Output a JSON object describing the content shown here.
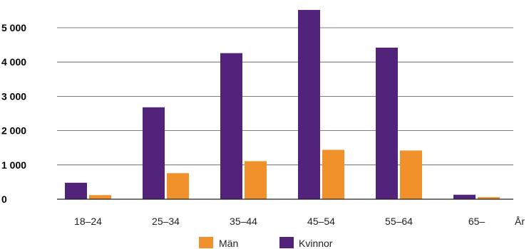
{
  "chart_data": {
    "type": "bar",
    "categories": [
      "18–24",
      "25–34",
      "35–44",
      "45–54",
      "55–64",
      "65–"
    ],
    "series": [
      {
        "name": "Kvinnor",
        "values": [
          480,
          2680,
          4260,
          5520,
          4420,
          130
        ],
        "color": "#52237a"
      },
      {
        "name": "Män",
        "values": [
          120,
          760,
          1110,
          1440,
          1420,
          60
        ],
        "color": "#f0912b"
      }
    ],
    "xlabel": "År",
    "ylabel": "",
    "ylim": [
      0,
      5500
    ],
    "yticks": [
      0,
      1000,
      2000,
      3000,
      4000,
      5000
    ],
    "ytick_labels": [
      "0",
      "1 000",
      "2 000",
      "3 000",
      "4 000",
      "5 000"
    ],
    "grid": true,
    "legend": {
      "placement": "bottom",
      "entries": [
        {
          "label": "Män",
          "color": "#f0912b"
        },
        {
          "label": "Kvinnor",
          "color": "#52237a"
        }
      ]
    }
  }
}
